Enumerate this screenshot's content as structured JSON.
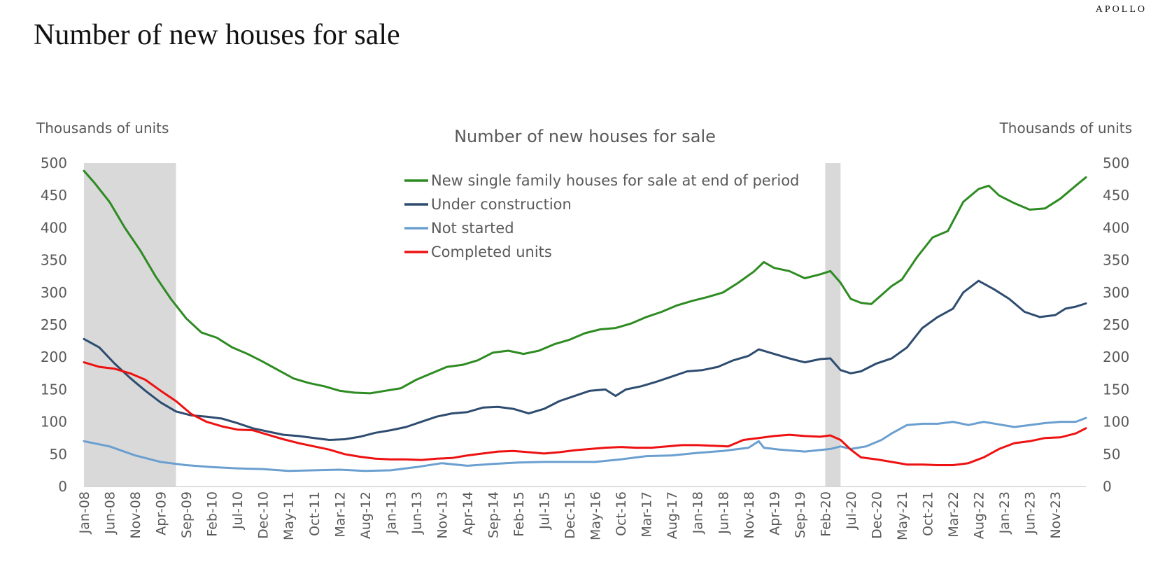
{
  "header": {
    "brand": "APOLLO",
    "title": "Number of new houses for sale"
  },
  "chart_data": {
    "type": "line",
    "title": "Number of new houses for sale",
    "ylabel_left": "Thousands of units",
    "ylabel_right": "Thousands of units",
    "ylim": [
      0,
      500
    ],
    "yticks": [
      0,
      50,
      100,
      150,
      200,
      250,
      300,
      350,
      400,
      450,
      500
    ],
    "x_start": "2008-01",
    "x_end": "2024-05",
    "x_tick_labels": [
      "Jan-08",
      "Jun-08",
      "Nov-08",
      "Apr-09",
      "Sep-09",
      "Feb-10",
      "Jul-10",
      "Dec-10",
      "May-11",
      "Oct-11",
      "Mar-12",
      "Aug-12",
      "Jan-13",
      "Jun-13",
      "Nov-13",
      "Apr-14",
      "Sep-14",
      "Feb-15",
      "Jul-15",
      "Dec-15",
      "May-16",
      "Oct-16",
      "Mar-17",
      "Aug-17",
      "Jan-18",
      "Jun-18",
      "Nov-18",
      "Apr-19",
      "Sep-19",
      "Feb-20",
      "Jul-20",
      "Dec-20",
      "May-21",
      "Oct-21",
      "Mar-22",
      "Aug-22",
      "Jan-23",
      "Jun-23",
      "Nov-23"
    ],
    "recessions": [
      {
        "start": "2008-01",
        "end": "2009-06"
      },
      {
        "start": "2020-02",
        "end": "2020-04"
      }
    ],
    "grid": false,
    "legend_position": "top-center",
    "series": [
      {
        "name": "New single family houses for sale at end of period",
        "color": "#2e8b22",
        "points": [
          [
            "2008-01",
            488
          ],
          [
            "2008-03",
            470
          ],
          [
            "2008-06",
            440
          ],
          [
            "2008-09",
            400
          ],
          [
            "2008-12",
            365
          ],
          [
            "2009-03",
            325
          ],
          [
            "2009-06",
            290
          ],
          [
            "2009-09",
            260
          ],
          [
            "2009-12",
            238
          ],
          [
            "2010-03",
            230
          ],
          [
            "2010-06",
            215
          ],
          [
            "2010-09",
            205
          ],
          [
            "2010-12",
            193
          ],
          [
            "2011-03",
            180
          ],
          [
            "2011-06",
            167
          ],
          [
            "2011-09",
            160
          ],
          [
            "2011-12",
            155
          ],
          [
            "2012-03",
            148
          ],
          [
            "2012-06",
            145
          ],
          [
            "2012-09",
            144
          ],
          [
            "2012-12",
            148
          ],
          [
            "2013-03",
            152
          ],
          [
            "2013-06",
            165
          ],
          [
            "2013-09",
            175
          ],
          [
            "2013-12",
            185
          ],
          [
            "2014-03",
            188
          ],
          [
            "2014-06",
            195
          ],
          [
            "2014-09",
            207
          ],
          [
            "2014-12",
            210
          ],
          [
            "2015-03",
            205
          ],
          [
            "2015-06",
            210
          ],
          [
            "2015-09",
            220
          ],
          [
            "2015-12",
            227
          ],
          [
            "2016-03",
            237
          ],
          [
            "2016-06",
            243
          ],
          [
            "2016-09",
            245
          ],
          [
            "2016-12",
            252
          ],
          [
            "2017-03",
            262
          ],
          [
            "2017-06",
            270
          ],
          [
            "2017-09",
            280
          ],
          [
            "2017-12",
            287
          ],
          [
            "2018-03",
            293
          ],
          [
            "2018-06",
            300
          ],
          [
            "2018-09",
            315
          ],
          [
            "2018-12",
            332
          ],
          [
            "2019-02",
            347
          ],
          [
            "2019-04",
            338
          ],
          [
            "2019-07",
            333
          ],
          [
            "2019-10",
            322
          ],
          [
            "2020-01",
            328
          ],
          [
            "2020-03",
            333
          ],
          [
            "2020-05",
            315
          ],
          [
            "2020-07",
            290
          ],
          [
            "2020-09",
            284
          ],
          [
            "2020-11",
            282
          ],
          [
            "2021-01",
            296
          ],
          [
            "2021-03",
            310
          ],
          [
            "2021-05",
            320
          ],
          [
            "2021-08",
            355
          ],
          [
            "2021-11",
            385
          ],
          [
            "2022-02",
            395
          ],
          [
            "2022-05",
            440
          ],
          [
            "2022-08",
            460
          ],
          [
            "2022-10",
            465
          ],
          [
            "2022-12",
            450
          ],
          [
            "2023-03",
            438
          ],
          [
            "2023-06",
            428
          ],
          [
            "2023-09",
            430
          ],
          [
            "2023-12",
            445
          ],
          [
            "2024-03",
            465
          ],
          [
            "2024-05",
            478
          ]
        ]
      },
      {
        "name": "Under construction",
        "color": "#2e4c70",
        "points": [
          [
            "2008-01",
            228
          ],
          [
            "2008-04",
            215
          ],
          [
            "2008-07",
            190
          ],
          [
            "2008-10",
            168
          ],
          [
            "2009-01",
            148
          ],
          [
            "2009-04",
            130
          ],
          [
            "2009-07",
            116
          ],
          [
            "2009-10",
            110
          ],
          [
            "2010-01",
            108
          ],
          [
            "2010-04",
            105
          ],
          [
            "2010-07",
            98
          ],
          [
            "2010-10",
            90
          ],
          [
            "2011-01",
            85
          ],
          [
            "2011-04",
            80
          ],
          [
            "2011-07",
            78
          ],
          [
            "2011-10",
            75
          ],
          [
            "2012-01",
            72
          ],
          [
            "2012-04",
            73
          ],
          [
            "2012-07",
            77
          ],
          [
            "2012-10",
            83
          ],
          [
            "2013-01",
            87
          ],
          [
            "2013-04",
            92
          ],
          [
            "2013-07",
            100
          ],
          [
            "2013-10",
            108
          ],
          [
            "2014-01",
            113
          ],
          [
            "2014-04",
            115
          ],
          [
            "2014-07",
            122
          ],
          [
            "2014-10",
            123
          ],
          [
            "2015-01",
            120
          ],
          [
            "2015-04",
            113
          ],
          [
            "2015-07",
            120
          ],
          [
            "2015-10",
            132
          ],
          [
            "2016-01",
            140
          ],
          [
            "2016-04",
            148
          ],
          [
            "2016-07",
            150
          ],
          [
            "2016-09",
            140
          ],
          [
            "2016-11",
            150
          ],
          [
            "2017-02",
            155
          ],
          [
            "2017-05",
            162
          ],
          [
            "2017-08",
            170
          ],
          [
            "2017-11",
            178
          ],
          [
            "2018-02",
            180
          ],
          [
            "2018-05",
            185
          ],
          [
            "2018-08",
            195
          ],
          [
            "2018-11",
            202
          ],
          [
            "2019-01",
            212
          ],
          [
            "2019-04",
            205
          ],
          [
            "2019-07",
            198
          ],
          [
            "2019-10",
            192
          ],
          [
            "2020-01",
            197
          ],
          [
            "2020-03",
            198
          ],
          [
            "2020-05",
            180
          ],
          [
            "2020-07",
            175
          ],
          [
            "2020-09",
            178
          ],
          [
            "2020-12",
            190
          ],
          [
            "2021-03",
            198
          ],
          [
            "2021-06",
            215
          ],
          [
            "2021-09",
            245
          ],
          [
            "2021-12",
            262
          ],
          [
            "2022-03",
            275
          ],
          [
            "2022-05",
            300
          ],
          [
            "2022-08",
            318
          ],
          [
            "2022-11",
            305
          ],
          [
            "2023-02",
            290
          ],
          [
            "2023-05",
            270
          ],
          [
            "2023-08",
            262
          ],
          [
            "2023-11",
            265
          ],
          [
            "2024-01",
            275
          ],
          [
            "2024-03",
            278
          ],
          [
            "2024-05",
            283
          ]
        ]
      },
      {
        "name": "Not started",
        "color": "#6a9fd0",
        "points": [
          [
            "2008-01",
            70
          ],
          [
            "2008-06",
            62
          ],
          [
            "2008-11",
            48
          ],
          [
            "2009-04",
            38
          ],
          [
            "2009-09",
            33
          ],
          [
            "2010-02",
            30
          ],
          [
            "2010-07",
            28
          ],
          [
            "2010-12",
            27
          ],
          [
            "2011-05",
            24
          ],
          [
            "2011-10",
            25
          ],
          [
            "2012-03",
            26
          ],
          [
            "2012-08",
            24
          ],
          [
            "2013-01",
            25
          ],
          [
            "2013-06",
            30
          ],
          [
            "2013-11",
            36
          ],
          [
            "2014-04",
            32
          ],
          [
            "2014-09",
            35
          ],
          [
            "2015-02",
            37
          ],
          [
            "2015-07",
            38
          ],
          [
            "2015-12",
            38
          ],
          [
            "2016-05",
            38
          ],
          [
            "2016-10",
            42
          ],
          [
            "2017-03",
            47
          ],
          [
            "2017-08",
            48
          ],
          [
            "2018-01",
            52
          ],
          [
            "2018-06",
            55
          ],
          [
            "2018-11",
            60
          ],
          [
            "2019-01",
            70
          ],
          [
            "2019-02",
            60
          ],
          [
            "2019-05",
            57
          ],
          [
            "2019-10",
            54
          ],
          [
            "2020-03",
            58
          ],
          [
            "2020-05",
            62
          ],
          [
            "2020-07",
            58
          ],
          [
            "2020-10",
            62
          ],
          [
            "2021-01",
            72
          ],
          [
            "2021-03",
            82
          ],
          [
            "2021-06",
            95
          ],
          [
            "2021-09",
            97
          ],
          [
            "2021-12",
            97
          ],
          [
            "2022-03",
            100
          ],
          [
            "2022-06",
            95
          ],
          [
            "2022-09",
            100
          ],
          [
            "2022-12",
            96
          ],
          [
            "2023-03",
            92
          ],
          [
            "2023-06",
            95
          ],
          [
            "2023-09",
            98
          ],
          [
            "2023-12",
            100
          ],
          [
            "2024-03",
            100
          ],
          [
            "2024-05",
            106
          ]
        ]
      },
      {
        "name": "Completed units",
        "color": "#ee1111",
        "points": [
          [
            "2008-01",
            192
          ],
          [
            "2008-04",
            185
          ],
          [
            "2008-07",
            182
          ],
          [
            "2008-10",
            175
          ],
          [
            "2009-01",
            165
          ],
          [
            "2009-04",
            148
          ],
          [
            "2009-07",
            132
          ],
          [
            "2009-10",
            112
          ],
          [
            "2010-01",
            100
          ],
          [
            "2010-04",
            93
          ],
          [
            "2010-07",
            88
          ],
          [
            "2010-10",
            87
          ],
          [
            "2011-01",
            80
          ],
          [
            "2011-04",
            73
          ],
          [
            "2011-07",
            67
          ],
          [
            "2011-10",
            62
          ],
          [
            "2012-01",
            57
          ],
          [
            "2012-04",
            50
          ],
          [
            "2012-07",
            46
          ],
          [
            "2012-10",
            43
          ],
          [
            "2013-01",
            42
          ],
          [
            "2013-04",
            42
          ],
          [
            "2013-07",
            41
          ],
          [
            "2013-10",
            43
          ],
          [
            "2014-01",
            44
          ],
          [
            "2014-04",
            48
          ],
          [
            "2014-07",
            51
          ],
          [
            "2014-10",
            54
          ],
          [
            "2015-01",
            55
          ],
          [
            "2015-04",
            53
          ],
          [
            "2015-07",
            51
          ],
          [
            "2015-10",
            53
          ],
          [
            "2016-01",
            56
          ],
          [
            "2016-04",
            58
          ],
          [
            "2016-07",
            60
          ],
          [
            "2016-10",
            61
          ],
          [
            "2017-01",
            60
          ],
          [
            "2017-04",
            60
          ],
          [
            "2017-07",
            62
          ],
          [
            "2017-10",
            64
          ],
          [
            "2018-01",
            64
          ],
          [
            "2018-04",
            63
          ],
          [
            "2018-07",
            62
          ],
          [
            "2018-10",
            72
          ],
          [
            "2019-01",
            75
          ],
          [
            "2019-04",
            78
          ],
          [
            "2019-07",
            80
          ],
          [
            "2019-10",
            78
          ],
          [
            "2020-01",
            77
          ],
          [
            "2020-03",
            79
          ],
          [
            "2020-05",
            72
          ],
          [
            "2020-07",
            57
          ],
          [
            "2020-09",
            45
          ],
          [
            "2020-12",
            42
          ],
          [
            "2021-03",
            38
          ],
          [
            "2021-06",
            34
          ],
          [
            "2021-09",
            34
          ],
          [
            "2021-12",
            33
          ],
          [
            "2022-03",
            33
          ],
          [
            "2022-06",
            36
          ],
          [
            "2022-09",
            45
          ],
          [
            "2022-12",
            58
          ],
          [
            "2023-03",
            67
          ],
          [
            "2023-06",
            70
          ],
          [
            "2023-09",
            75
          ],
          [
            "2023-12",
            76
          ],
          [
            "2024-03",
            82
          ],
          [
            "2024-05",
            90
          ]
        ]
      }
    ]
  }
}
